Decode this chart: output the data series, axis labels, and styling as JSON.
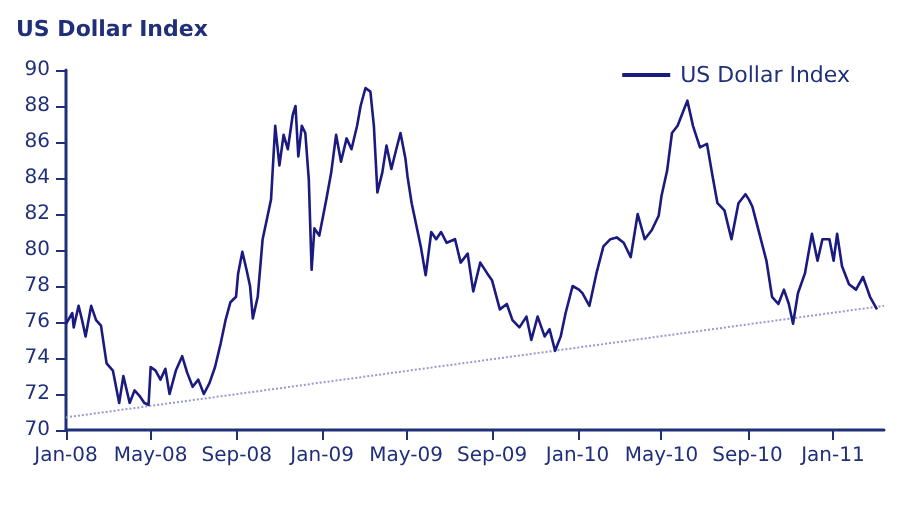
{
  "chart_data": {
    "type": "line",
    "title": "US Dollar Index",
    "legend": "top right",
    "grid": false,
    "marker": "none",
    "xlim": [
      "2008-01-01",
      "2011-03-15"
    ],
    "xticks": [
      {
        "value": "2008-01-01",
        "label": "Jan-08"
      },
      {
        "value": "2008-05-01",
        "label": "May-08"
      },
      {
        "value": "2008-09-01",
        "label": "Sep-08"
      },
      {
        "value": "2009-01-01",
        "label": "Jan-09"
      },
      {
        "value": "2009-05-01",
        "label": "May-09"
      },
      {
        "value": "2009-09-01",
        "label": "Sep-09"
      },
      {
        "value": "2010-01-01",
        "label": "Jan-10"
      },
      {
        "value": "2010-05-01",
        "label": "May-10"
      },
      {
        "value": "2010-09-01",
        "label": "Sep-10"
      },
      {
        "value": "2011-01-01",
        "label": "Jan-11"
      }
    ],
    "ylim": [
      70,
      90
    ],
    "yticks": [
      70,
      72,
      74,
      76,
      78,
      80,
      82,
      84,
      86,
      88,
      90
    ],
    "series": [
      {
        "name": "US Dollar Index",
        "color": "#1a1a80",
        "line_style": "solid",
        "x": [
          "2008-01-01",
          "2008-01-10",
          "2008-01-12",
          "2008-01-19",
          "2008-01-24",
          "2008-01-29",
          "2008-02-06",
          "2008-02-13",
          "2008-02-20",
          "2008-02-28",
          "2008-03-08",
          "2008-03-17",
          "2008-03-23",
          "2008-04-01",
          "2008-04-08",
          "2008-04-15",
          "2008-04-22",
          "2008-04-28",
          "2008-05-01",
          "2008-05-08",
          "2008-05-15",
          "2008-05-22",
          "2008-05-28",
          "2008-06-06",
          "2008-06-15",
          "2008-06-22",
          "2008-06-30",
          "2008-07-08",
          "2008-07-16",
          "2008-07-24",
          "2008-08-01",
          "2008-08-09",
          "2008-08-16",
          "2008-08-23",
          "2008-08-31",
          "2008-09-03",
          "2008-09-09",
          "2008-09-15",
          "2008-09-20",
          "2008-09-24",
          "2008-10-01",
          "2008-10-08",
          "2008-10-14",
          "2008-10-20",
          "2008-10-26",
          "2008-11-01",
          "2008-11-07",
          "2008-11-13",
          "2008-11-20",
          "2008-11-24",
          "2008-11-28",
          "2008-12-03",
          "2008-12-08",
          "2008-12-13",
          "2008-12-17",
          "2008-12-21",
          "2008-12-28",
          "2009-01-07",
          "2009-01-14",
          "2009-01-21",
          "2009-01-28",
          "2009-02-05",
          "2009-02-12",
          "2009-02-20",
          "2009-02-25",
          "2009-03-04",
          "2009-03-11",
          "2009-03-16",
          "2009-03-21",
          "2009-03-28",
          "2009-04-03",
          "2009-04-10",
          "2009-04-17",
          "2009-04-23",
          "2009-04-30",
          "2009-05-03",
          "2009-05-09",
          "2009-05-16",
          "2009-05-22",
          "2009-05-29",
          "2009-06-06",
          "2009-06-13",
          "2009-06-20",
          "2009-06-28",
          "2009-07-10",
          "2009-07-18",
          "2009-07-28",
          "2009-08-05",
          "2009-08-15",
          "2009-08-25",
          "2009-09-01",
          "2009-09-12",
          "2009-09-22",
          "2009-09-30",
          "2009-10-10",
          "2009-10-20",
          "2009-10-27",
          "2009-11-05",
          "2009-11-15",
          "2009-11-22",
          "2009-11-30",
          "2009-12-08",
          "2009-12-15",
          "2009-12-25",
          "2010-01-03",
          "2010-01-08",
          "2010-01-18",
          "2010-01-28",
          "2010-02-07",
          "2010-02-17",
          "2010-02-26",
          "2010-03-08",
          "2010-03-18",
          "2010-03-28",
          "2010-04-07",
          "2010-04-17",
          "2010-04-27",
          "2010-05-01",
          "2010-05-09",
          "2010-05-16",
          "2010-05-24",
          "2010-05-31",
          "2010-06-07",
          "2010-06-15",
          "2010-06-25",
          "2010-07-05",
          "2010-07-13",
          "2010-07-20",
          "2010-07-30",
          "2010-08-09",
          "2010-08-19",
          "2010-08-29",
          "2010-09-03",
          "2010-09-08",
          "2010-09-18",
          "2010-09-28",
          "2010-10-06",
          "2010-10-15",
          "2010-10-23",
          "2010-10-30",
          "2010-11-05",
          "2010-11-12",
          "2010-11-22",
          "2010-12-02",
          "2010-12-10",
          "2010-12-17",
          "2010-12-27",
          "2011-01-02",
          "2011-01-07",
          "2011-01-14",
          "2011-01-24",
          "2011-02-03",
          "2011-02-13",
          "2011-02-23",
          "2011-03-05"
        ],
        "values": [
          75.9,
          76.5,
          75.7,
          76.9,
          76.1,
          75.2,
          76.9,
          76.1,
          75.8,
          73.7,
          73.3,
          71.5,
          73.0,
          71.5,
          72.2,
          71.9,
          71.5,
          71.4,
          73.5,
          73.3,
          72.8,
          73.4,
          72.0,
          73.3,
          74.1,
          73.2,
          72.4,
          72.8,
          72.0,
          72.6,
          73.5,
          74.8,
          76.1,
          77.1,
          77.4,
          78.7,
          79.9,
          78.9,
          78.0,
          76.2,
          77.4,
          80.6,
          81.7,
          82.8,
          86.9,
          84.7,
          86.4,
          85.6,
          87.5,
          88.0,
          85.2,
          86.9,
          86.5,
          83.9,
          78.9,
          81.2,
          80.8,
          82.8,
          84.3,
          86.4,
          84.9,
          86.2,
          85.6,
          86.9,
          88.0,
          89.0,
          88.8,
          86.9,
          83.2,
          84.3,
          85.8,
          84.5,
          85.6,
          86.5,
          85.1,
          84.1,
          82.6,
          81.3,
          80.2,
          78.6,
          81.0,
          80.6,
          81.0,
          80.4,
          80.6,
          79.3,
          79.8,
          77.7,
          79.3,
          78.7,
          78.3,
          76.7,
          77.0,
          76.1,
          75.7,
          76.3,
          75.0,
          76.3,
          75.2,
          75.6,
          74.4,
          75.2,
          76.5,
          78.0,
          77.8,
          77.6,
          76.9,
          78.7,
          80.2,
          80.6,
          80.7,
          80.4,
          79.6,
          82.0,
          80.6,
          81.1,
          81.9,
          83.0,
          84.4,
          86.5,
          86.9,
          87.6,
          88.3,
          86.9,
          85.7,
          85.9,
          84.1,
          82.6,
          82.2,
          80.6,
          82.6,
          83.1,
          82.8,
          82.4,
          80.9,
          79.4,
          77.4,
          77.0,
          77.8,
          77.0,
          75.9,
          77.6,
          78.7,
          80.9,
          79.4,
          80.6,
          80.6,
          79.4,
          80.9,
          79.1,
          78.1,
          77.8,
          78.5,
          77.4,
          76.7
        ]
      },
      {
        "type": "line",
        "color": "#9999cc",
        "line_style": "dotted",
        "x": [
          "2008-01-01",
          "2011-03-15"
        ],
        "values": [
          70.7,
          76.9
        ]
      }
    ]
  }
}
